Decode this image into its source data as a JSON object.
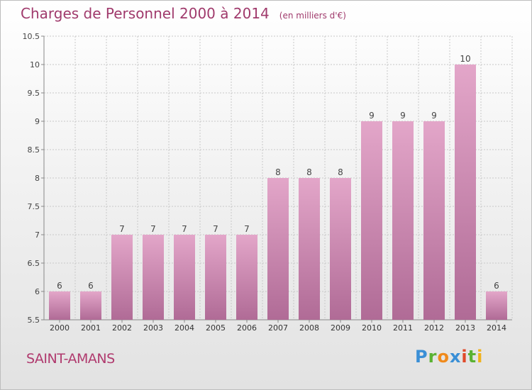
{
  "header": {
    "title": "Charges de Personnel 2000 à 2014",
    "subtitle": "(en milliers d'€)"
  },
  "footer": {
    "commune": "SAINT-AMANS",
    "logo_text": "Proxiti"
  },
  "colors": {
    "bar_top": "#e3a6c9",
    "bar_bottom": "#b06b96",
    "title": "#a03a6c",
    "grid": "#c8c8c8"
  },
  "chart_data": {
    "type": "bar",
    "title": "Charges de Personnel 2000 à 2014",
    "subtitle": "(en milliers d'€)",
    "xlabel": "",
    "ylabel": "",
    "categories": [
      "2000",
      "2001",
      "2002",
      "2003",
      "2004",
      "2005",
      "2006",
      "2007",
      "2008",
      "2009",
      "2010",
      "2011",
      "2012",
      "2013",
      "2014"
    ],
    "values": [
      6,
      6,
      7,
      7,
      7,
      7,
      7,
      8,
      8,
      8,
      9,
      9,
      9,
      10,
      6
    ],
    "data_labels": [
      "6",
      "6",
      "7",
      "7",
      "7",
      "7",
      "7",
      "8",
      "8",
      "8",
      "9",
      "9",
      "9",
      "10",
      "6"
    ],
    "ylim": [
      5.5,
      10.5
    ],
    "yticks": [
      "5.5",
      "6",
      "6.5",
      "7",
      "7.5",
      "8",
      "8.5",
      "9",
      "9.5",
      "10",
      "10.5"
    ],
    "grid": true,
    "legend": "none"
  }
}
